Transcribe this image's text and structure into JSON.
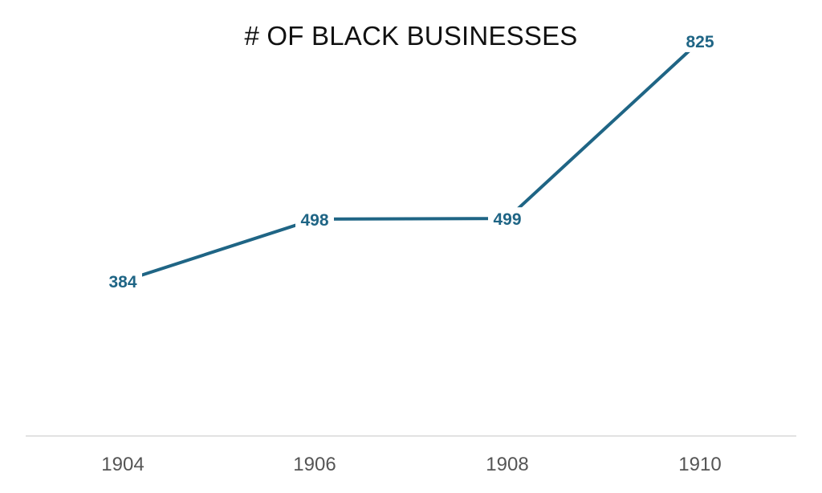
{
  "chart_data": {
    "type": "line",
    "title": "# OF BLACK BUSINESSES",
    "xlabel": "",
    "ylabel": "",
    "x": [
      "1904",
      "1906",
      "1908",
      "1910"
    ],
    "series": [
      {
        "values": [
          384,
          498,
          499,
          825
        ]
      }
    ],
    "data_labels": [
      "384",
      "498",
      "499",
      "825"
    ],
    "ylim": [
      100,
      900
    ],
    "grid": false,
    "legend": "none",
    "line_color": "#1f6585",
    "axis_color": "#d9d9d9",
    "tick_color": "#555555"
  }
}
